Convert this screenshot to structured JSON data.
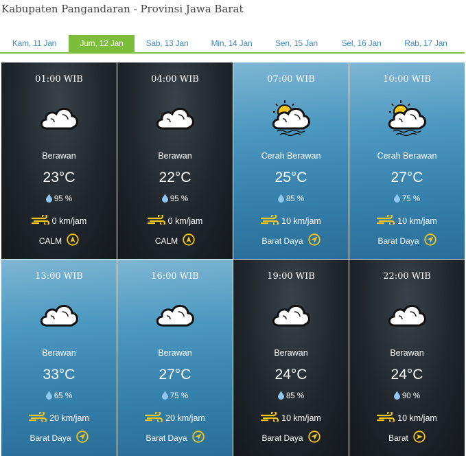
{
  "page_title": "Kabupaten Pangandaran - Provinsi Jawa Barat",
  "tabs": [
    {
      "label": "Kam, 11 Jan",
      "active": false
    },
    {
      "label": "Jum, 12 Jan",
      "active": true
    },
    {
      "label": "Sab, 13 Jan",
      "active": false
    },
    {
      "label": "Min, 14 Jan",
      "active": false
    },
    {
      "label": "Sen, 15 Jan",
      "active": false
    },
    {
      "label": "Sel, 16 Jan",
      "active": false
    },
    {
      "label": "Rab, 17 Jan",
      "active": false
    }
  ],
  "colors": {
    "accent": "#7cbd3a",
    "tab_text": "#3c87c6",
    "icon_yellow": "#f2c521",
    "humidity": "#8fc7f0"
  },
  "forecasts": [
    {
      "time": "01:00 WIB",
      "icon": "cloud-icon",
      "theme": "night",
      "condition": "Berawan",
      "temp": "23°C",
      "humidity": "95 %",
      "wind": "0 km/jam",
      "direction": "CALM",
      "dir_icon": "calm-compass-icon"
    },
    {
      "time": "04:00 WIB",
      "icon": "cloud-icon",
      "theme": "night",
      "condition": "Berawan",
      "temp": "22°C",
      "humidity": "95 %",
      "wind": "0 km/jam",
      "direction": "CALM",
      "dir_icon": "calm-compass-icon"
    },
    {
      "time": "07:00 WIB",
      "icon": "partly-cloudy-icon",
      "theme": "day",
      "condition": "Cerah Berawan",
      "temp": "25°C",
      "humidity": "85 %",
      "wind": "10 km/jam",
      "direction": "Barat Daya",
      "dir_icon": "southwest-compass-icon"
    },
    {
      "time": "10:00 WIB",
      "icon": "partly-cloudy-icon",
      "theme": "day",
      "condition": "Cerah Berawan",
      "temp": "27°C",
      "humidity": "75 %",
      "wind": "10 km/jam",
      "direction": "Barat Daya",
      "dir_icon": "southwest-compass-icon"
    },
    {
      "time": "13:00 WIB",
      "icon": "cloud-icon",
      "theme": "day",
      "condition": "Berawan",
      "temp": "33°C",
      "humidity": "65 %",
      "wind": "20 km/jam",
      "direction": "Barat Daya",
      "dir_icon": "southwest-compass-icon"
    },
    {
      "time": "16:00 WIB",
      "icon": "cloud-icon",
      "theme": "day",
      "condition": "Berawan",
      "temp": "27°C",
      "humidity": "75 %",
      "wind": "20 km/jam",
      "direction": "Barat Daya",
      "dir_icon": "southwest-compass-icon"
    },
    {
      "time": "19:00 WIB",
      "icon": "cloud-icon",
      "theme": "night",
      "condition": "Berawan",
      "temp": "24°C",
      "humidity": "85 %",
      "wind": "10 km/jam",
      "direction": "Barat Daya",
      "dir_icon": "southwest-compass-icon"
    },
    {
      "time": "22:00 WIB",
      "icon": "cloud-icon",
      "theme": "night",
      "condition": "Berawan",
      "temp": "24°C",
      "humidity": "90 %",
      "wind": "10 km/jam",
      "direction": "Barat",
      "dir_icon": "west-compass-icon"
    }
  ]
}
